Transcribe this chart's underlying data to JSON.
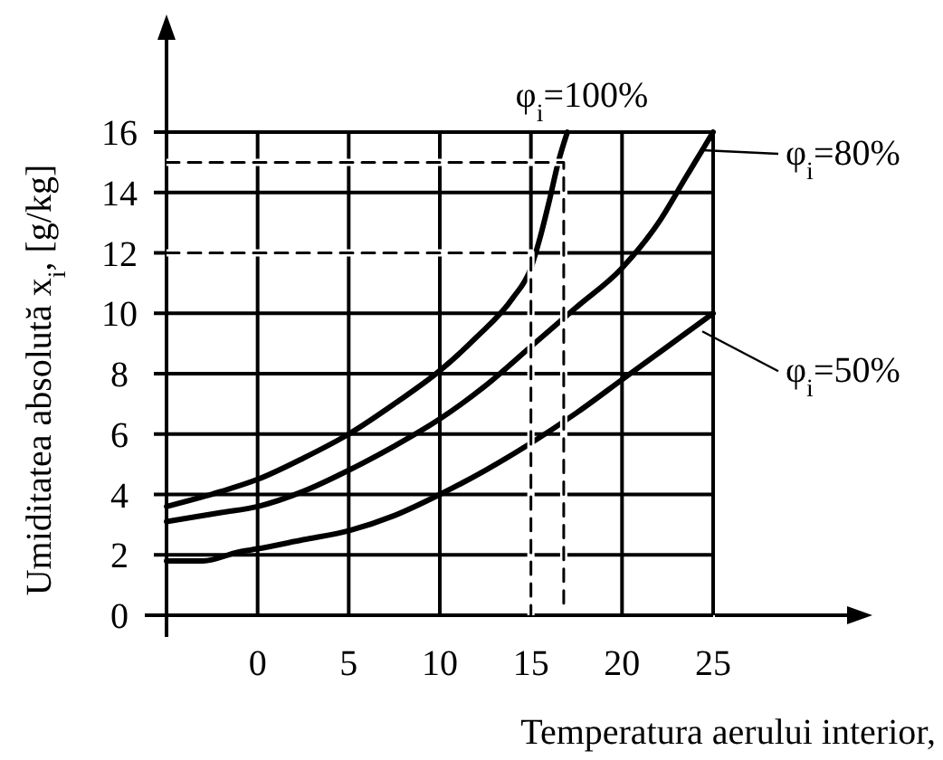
{
  "chart_data": {
    "type": "line",
    "xlabel": "Temperatura aerului interior,",
    "ylabel": "Umiditatea absolută x$_{i}$, [g/kg]",
    "xlim": [
      -5,
      25
    ],
    "ylim": [
      0,
      16
    ],
    "xticks": [
      0,
      5,
      10,
      15,
      20,
      25
    ],
    "yticks": [
      0,
      2,
      4,
      6,
      8,
      10,
      12,
      14,
      16
    ],
    "grid": true,
    "legend": "right",
    "marker": "none",
    "line_style": "solid",
    "series": [
      {
        "name": "φ$_{i}$=100%",
        "color": "#000000",
        "x": [
          -5,
          -2,
          0,
          2.5,
          5,
          7.5,
          10,
          12,
          14,
          15,
          15.5,
          16,
          16.5,
          17
        ],
        "values": [
          3.6,
          4.1,
          4.5,
          5.2,
          6,
          7,
          8.1,
          9.2,
          10.5,
          11.5,
          12.5,
          13.7,
          15,
          16
        ]
      },
      {
        "name": "φ$_{i}$=80%",
        "color": "#000000",
        "x": [
          -5,
          -2,
          0,
          2.5,
          5,
          7.5,
          10,
          12.5,
          15,
          17.5,
          20,
          22,
          23.5,
          24.5,
          25
        ],
        "values": [
          3.1,
          3.4,
          3.6,
          4.1,
          4.8,
          5.6,
          6.5,
          7.6,
          8.9,
          10.2,
          11.5,
          13,
          14.5,
          15.5,
          16
        ]
      },
      {
        "name": "φ$_{i}$=50%",
        "color": "#000000",
        "x": [
          -5,
          -3,
          -1,
          0,
          2.5,
          5,
          7.5,
          10,
          12.5,
          15,
          17.5,
          20,
          22.5,
          25
        ],
        "values": [
          1.8,
          1.8,
          2.1,
          2.2,
          2.5,
          2.8,
          3.3,
          4,
          4.8,
          5.7,
          6.7,
          7.8,
          8.9,
          10
        ]
      },
      {
        "color": "#000000",
        "line_style": "dashed",
        "x": [
          -5,
          15,
          15
        ],
        "values": [
          12,
          12,
          0
        ]
      },
      {
        "color": "#000000",
        "line_style": "dashed",
        "x": [
          -5,
          16.8,
          16.8
        ],
        "values": [
          15,
          15,
          0.3
        ]
      }
    ]
  }
}
